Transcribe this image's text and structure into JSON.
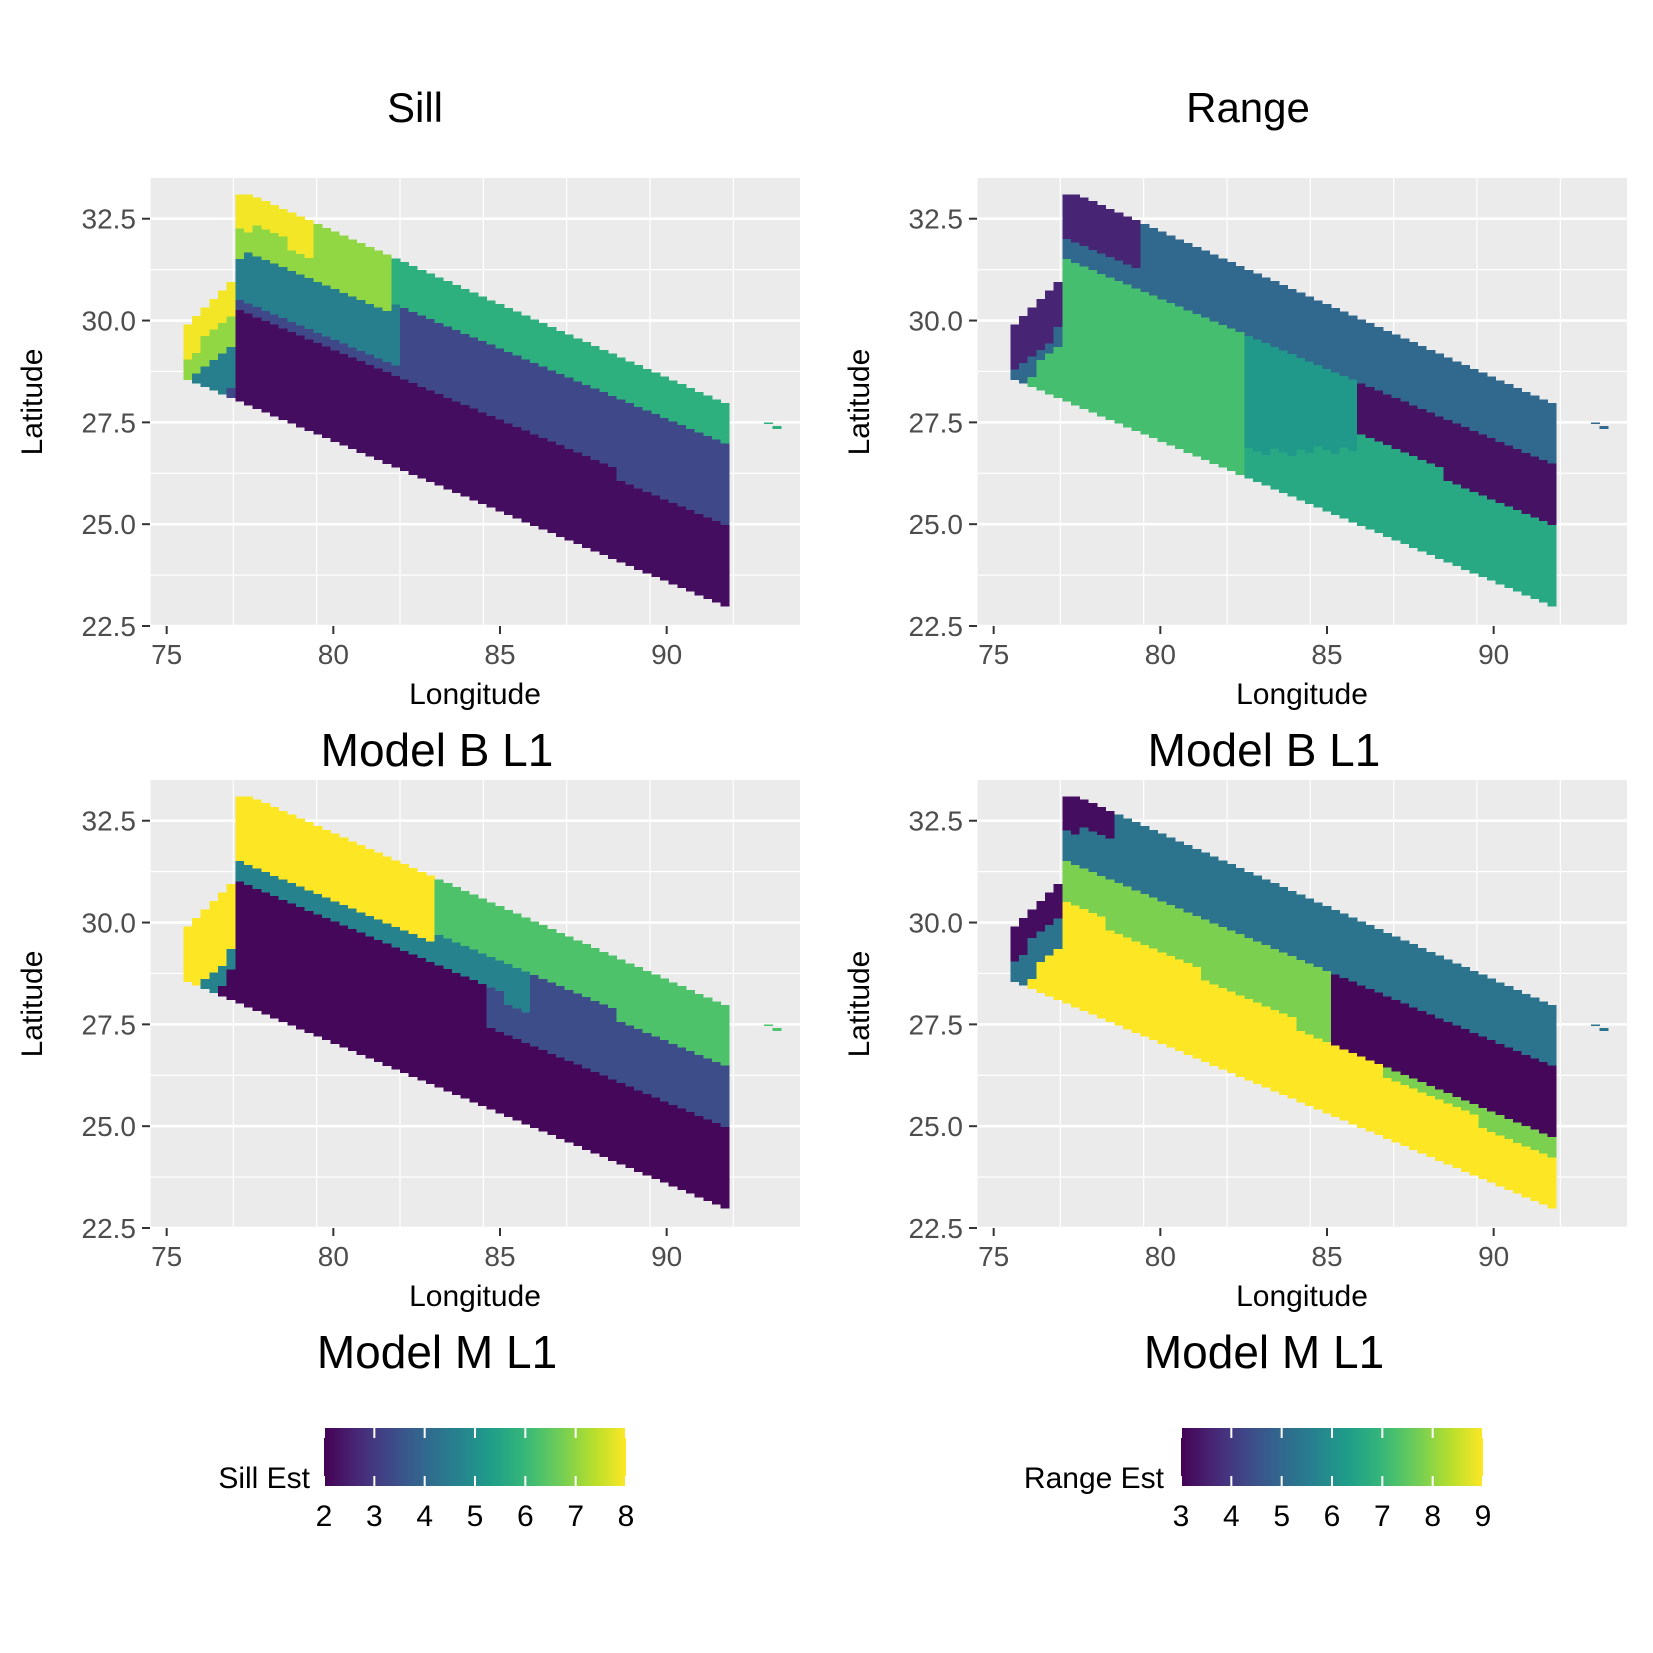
{
  "column_titles": [
    "Sill",
    "Range"
  ],
  "colors": {
    "panel_background": "#EBEBEB",
    "grid": "#FFFFFF",
    "viridis": [
      "#440154",
      "#482878",
      "#3E4A89",
      "#31688E",
      "#26828E",
      "#1F9E89",
      "#35B779",
      "#6DCD59",
      "#B4DE2C",
      "#FDE725"
    ]
  },
  "legends": [
    {
      "title": "Sill Est",
      "min": 2,
      "max": 8,
      "ticks": [
        "2",
        "3",
        "4",
        "5",
        "6",
        "7",
        "8"
      ]
    },
    {
      "title": "Range Est",
      "min": 3,
      "max": 9,
      "ticks": [
        "3",
        "4",
        "5",
        "6",
        "7",
        "8",
        "9"
      ]
    }
  ],
  "chart_data": [
    {
      "type": "heatmap",
      "title": "Model B L1",
      "column": "Sill",
      "legend": "Sill Est",
      "xlabel": "Longitude",
      "ylabel": "Latitude",
      "xlim": [
        74.5,
        94
      ],
      "ylim": [
        22.5,
        33.5
      ],
      "xticks": [
        "75",
        "80",
        "85",
        "90"
      ],
      "yticks": [
        "22.5",
        "25.0",
        "27.5",
        "30.0",
        "32.5"
      ],
      "grid": true,
      "region_estimates": [
        {
          "area": "north-west tip",
          "value": 7.9
        },
        {
          "area": "north-west upper slope",
          "value": 7.0
        },
        {
          "area": "north-central upper slope",
          "value": 5.8
        },
        {
          "area": "north-central mid slope",
          "value": 4.6
        },
        {
          "area": "central-east mid slope",
          "value": 3.3
        },
        {
          "area": "southern plains",
          "value": 2.2
        }
      ]
    },
    {
      "type": "heatmap",
      "title": "Model B L1",
      "column": "Range",
      "legend": "Range Est",
      "xlabel": "Longitude",
      "ylabel": "Latitude",
      "xlim": [
        74.5,
        94
      ],
      "ylim": [
        22.5,
        33.5
      ],
      "xticks": [
        "75",
        "80",
        "85",
        "90"
      ],
      "yticks": [
        "22.5",
        "25.0",
        "27.5",
        "30.0",
        "32.5"
      ],
      "grid": true,
      "region_estimates": [
        {
          "area": "north-west tip",
          "value": 3.6
        },
        {
          "area": "north belt",
          "value": 5.0
        },
        {
          "area": "western plains",
          "value": 7.2
        },
        {
          "area": "central belt",
          "value": 6.2
        },
        {
          "area": "north-east belt",
          "value": 3.3
        },
        {
          "area": "south-east plains",
          "value": 6.6
        }
      ]
    },
    {
      "type": "heatmap",
      "title": "Model M L1",
      "column": "Sill",
      "legend": "Sill Est",
      "xlabel": "Longitude",
      "ylabel": "Latitude",
      "xlim": [
        74.5,
        94
      ],
      "ylim": [
        22.5,
        33.5
      ],
      "xticks": [
        "75",
        "80",
        "85",
        "90"
      ],
      "yticks": [
        "22.5",
        "25.0",
        "27.5",
        "30.0",
        "32.5"
      ],
      "grid": true,
      "region_estimates": [
        {
          "area": "north-west tip",
          "value": 8.0
        },
        {
          "area": "north-central upper slope",
          "value": 6.3
        },
        {
          "area": "north-central mid slope",
          "value": 4.7
        },
        {
          "area": "eastern mid slope",
          "value": 3.4
        },
        {
          "area": "southern plains",
          "value": 2.1
        }
      ]
    },
    {
      "type": "heatmap",
      "title": "Model M L1",
      "column": "Range",
      "legend": "Range Est",
      "xlabel": "Longitude",
      "ylabel": "Latitude",
      "xlim": [
        74.5,
        94
      ],
      "ylim": [
        22.5,
        33.5
      ],
      "xticks": [
        "75",
        "80",
        "85",
        "90"
      ],
      "yticks": [
        "22.5",
        "25.0",
        "27.5",
        "30.0",
        "32.5"
      ],
      "grid": true,
      "region_estimates": [
        {
          "area": "north-west tip",
          "value": 3.2
        },
        {
          "area": "north belt",
          "value": 5.3
        },
        {
          "area": "western plains",
          "value": 9.0
        },
        {
          "area": "central belt",
          "value": 7.8
        },
        {
          "area": "north-east belt",
          "value": 3.1
        },
        {
          "area": "south-east plains",
          "value": 7.8
        }
      ]
    }
  ]
}
